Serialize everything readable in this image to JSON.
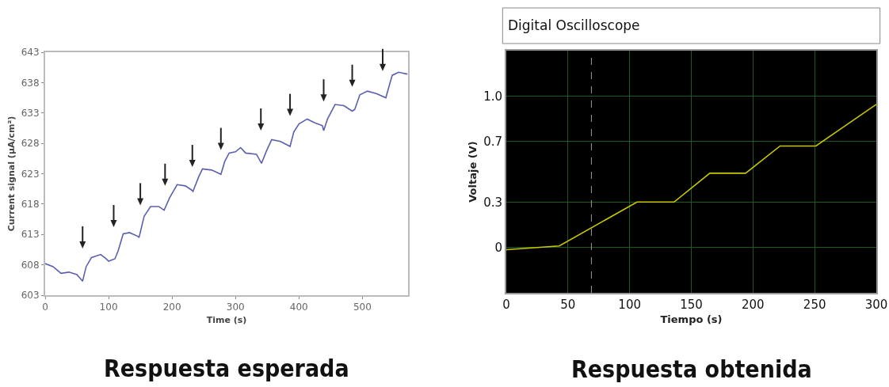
{
  "chart_data": [
    {
      "type": "line",
      "xlabel": "Time (s)",
      "ylabel": "Current signal (µA/cm²)",
      "xlim": [
        0,
        572
      ],
      "ylim": [
        603,
        643
      ],
      "xticks": [
        0,
        100,
        200,
        300,
        400,
        500
      ],
      "yticks": [
        603,
        608,
        613,
        618,
        623,
        628,
        633,
        638,
        643
      ],
      "grid": false,
      "marker": "none",
      "line_style": "solid",
      "series": [
        {
          "color": "#5b5fb0",
          "x": [
            0,
            12.5,
            25,
            37.5,
            50,
            59,
            64.6,
            73,
            87.5,
            96,
            100,
            110,
            115,
            123,
            133,
            146,
            148,
            156,
            166,
            179,
            187.5,
            196,
            208,
            221,
            231,
            233,
            242,
            248,
            262.5,
            273,
            277,
            283,
            290,
            300,
            308,
            316,
            333,
            341,
            349,
            357,
            371,
            386,
            392,
            400,
            413,
            424.5,
            437,
            439,
            445,
            457,
            471,
            484,
            488,
            496,
            508,
            522,
            537,
            541,
            547,
            557,
            571
          ],
          "values": [
            608.2,
            607.7,
            606.6,
            606.8,
            606.4,
            605.3,
            607.7,
            609.2,
            609.7,
            609,
            608.6,
            609,
            610.3,
            613.1,
            613.3,
            612.7,
            612.5,
            616,
            617.6,
            617.6,
            617,
            619,
            621.2,
            621,
            620.3,
            620.1,
            622.5,
            623.8,
            623.6,
            623.1,
            622.9,
            625,
            626.4,
            626.6,
            627.3,
            626.4,
            626.2,
            624.7,
            626.8,
            628.6,
            628.3,
            627.5,
            629.9,
            631.2,
            632,
            631.4,
            630.9,
            630.1,
            632,
            634.4,
            634.2,
            633.3,
            633.6,
            636,
            636.6,
            636.2,
            635.5,
            637,
            639.2,
            639.7,
            639.4
          ]
        }
      ],
      "annotations": [
        "Respuesta esperada"
      ]
    },
    {
      "type": "line",
      "title": "Digital Oscilloscope",
      "xlabel": "Tiempo (s)",
      "ylabel": "Voltaje (V)",
      "xlim": [
        0,
        300
      ],
      "ylim": [
        -0.3,
        1.3
      ],
      "xticks": [
        0,
        50,
        100,
        150,
        200,
        250,
        300
      ],
      "yticks": [
        0,
        0.3,
        0.7,
        {
          "value": 1,
          "label": "1.0"
        }
      ],
      "grid": true,
      "marker": "none",
      "line_style": "solid",
      "series": [
        {
          "color": "#c8c800",
          "x": [
            0,
            43,
            106,
            136,
            165,
            194,
            222,
            251,
            300
          ],
          "values": [
            -0.015,
            0.01,
            0.3,
            0.3,
            0.49,
            0.49,
            0.67,
            0.67,
            0.945
          ]
        }
      ],
      "ref_lines": [
        {
          "axis": "x",
          "value": 69,
          "color": "#9a9a9a",
          "line_style": "dashed"
        }
      ],
      "annotations": [
        "Respuesta obtenida"
      ]
    }
  ]
}
